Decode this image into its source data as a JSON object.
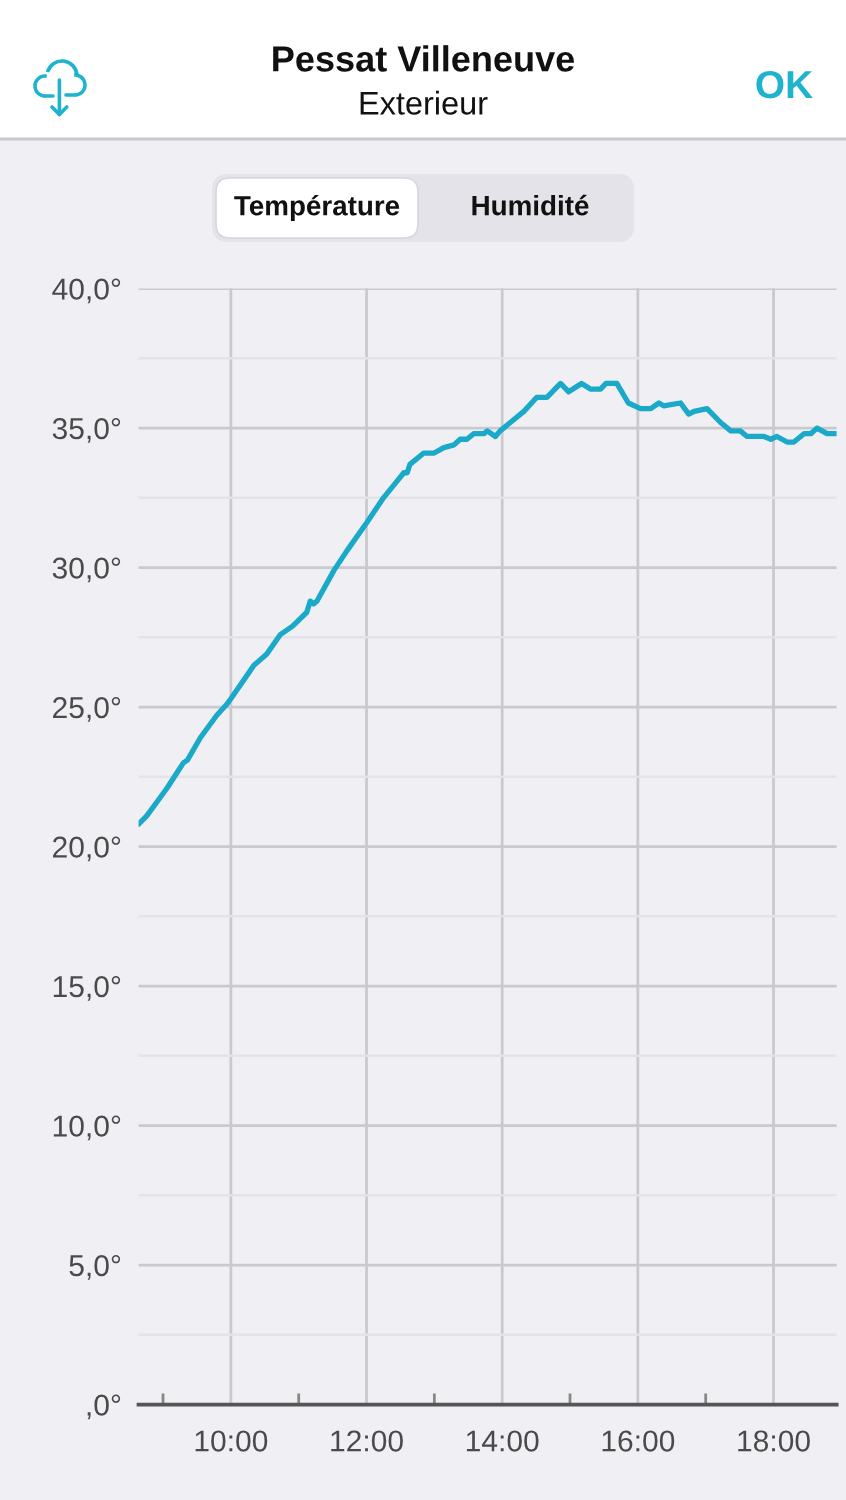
{
  "chart_data": {
    "type": "line",
    "title": "Pessat Villeneuve",
    "subtitle": "Exterieur",
    "annotations": [
      "OK",
      "Température",
      "Humidité"
    ],
    "x": [
      8.64,
      8.76,
      8.91,
      9.06,
      9.22,
      9.3,
      9.36,
      9.55,
      9.79,
      9.94,
      10.0,
      10.34,
      10.53,
      10.73,
      10.91,
      11.12,
      11.17,
      11.22,
      11.27,
      11.52,
      11.71,
      12.0,
      12.25,
      12.45,
      12.55,
      12.6,
      12.64,
      12.84,
      12.99,
      13.14,
      13.29,
      13.38,
      13.48,
      13.58,
      13.73,
      13.78,
      13.9,
      13.97,
      14.12,
      14.32,
      14.47,
      14.51,
      14.66,
      14.86,
      14.98,
      15.17,
      15.3,
      15.45,
      15.53,
      15.69,
      15.86,
      16.04,
      16.19,
      16.31,
      16.38,
      16.63,
      16.75,
      16.83,
      17.02,
      17.22,
      17.37,
      17.51,
      17.61,
      17.86,
      17.96,
      18.05,
      18.2,
      18.3,
      18.45,
      18.55,
      18.64,
      18.79,
      18.93
    ],
    "series": [
      {
        "color": "#1aa9c8",
        "values": [
          20.8,
          21.1,
          21.6,
          22.1,
          22.7,
          23.0,
          23.1,
          23.9,
          24.7,
          25.1,
          25.3,
          26.5,
          26.9,
          27.6,
          27.9,
          28.4,
          28.8,
          28.7,
          28.8,
          29.9,
          30.6,
          31.6,
          32.5,
          33.1,
          33.4,
          33.4,
          33.7,
          34.1,
          34.1,
          34.3,
          34.4,
          34.6,
          34.6,
          34.8,
          34.8,
          34.9,
          34.7,
          34.9,
          35.2,
          35.6,
          36.0,
          36.1,
          36.1,
          36.6,
          36.3,
          36.6,
          36.4,
          36.4,
          36.6,
          36.6,
          35.9,
          35.7,
          35.7,
          35.9,
          35.8,
          35.9,
          35.5,
          35.6,
          35.7,
          35.2,
          34.9,
          34.9,
          34.7,
          34.7,
          34.6,
          34.7,
          34.5,
          34.5,
          34.8,
          34.8,
          35.0,
          34.8,
          34.8
        ]
      }
    ],
    "xlim": [
      8.64,
      18.93
    ],
    "xticks": [
      {
        "value": 9,
        "label": null
      },
      {
        "value": 10,
        "label": "10:00"
      },
      {
        "value": 11,
        "label": null
      },
      {
        "value": 12,
        "label": "12:00"
      },
      {
        "value": 13,
        "label": null
      },
      {
        "value": 14,
        "label": "14:00"
      },
      {
        "value": 15,
        "label": null
      },
      {
        "value": 16,
        "label": "16:00"
      },
      {
        "value": 17,
        "label": null
      },
      {
        "value": 18,
        "label": "18:00"
      }
    ],
    "ylim": [
      0,
      40
    ],
    "yticks": [
      {
        "value": 0,
        "label": ",0°"
      },
      {
        "value": 2.5,
        "label": null
      },
      {
        "value": 5,
        "label": "5,0°"
      },
      {
        "value": 7.5,
        "label": null
      },
      {
        "value": 10,
        "label": "10,0°"
      },
      {
        "value": 12.5,
        "label": null
      },
      {
        "value": 15,
        "label": "15,0°"
      },
      {
        "value": 17.5,
        "label": null
      },
      {
        "value": 20,
        "label": "20,0°"
      },
      {
        "value": 22.5,
        "label": null
      },
      {
        "value": 25,
        "label": "25,0°"
      },
      {
        "value": 27.5,
        "label": null
      },
      {
        "value": 30,
        "label": "30,0°"
      },
      {
        "value": 32.5,
        "label": null
      },
      {
        "value": 35,
        "label": "35,0°"
      },
      {
        "value": 37.5,
        "label": null
      },
      {
        "value": 40,
        "label": "40,0°"
      }
    ],
    "grid": true,
    "line_style": "solid"
  }
}
